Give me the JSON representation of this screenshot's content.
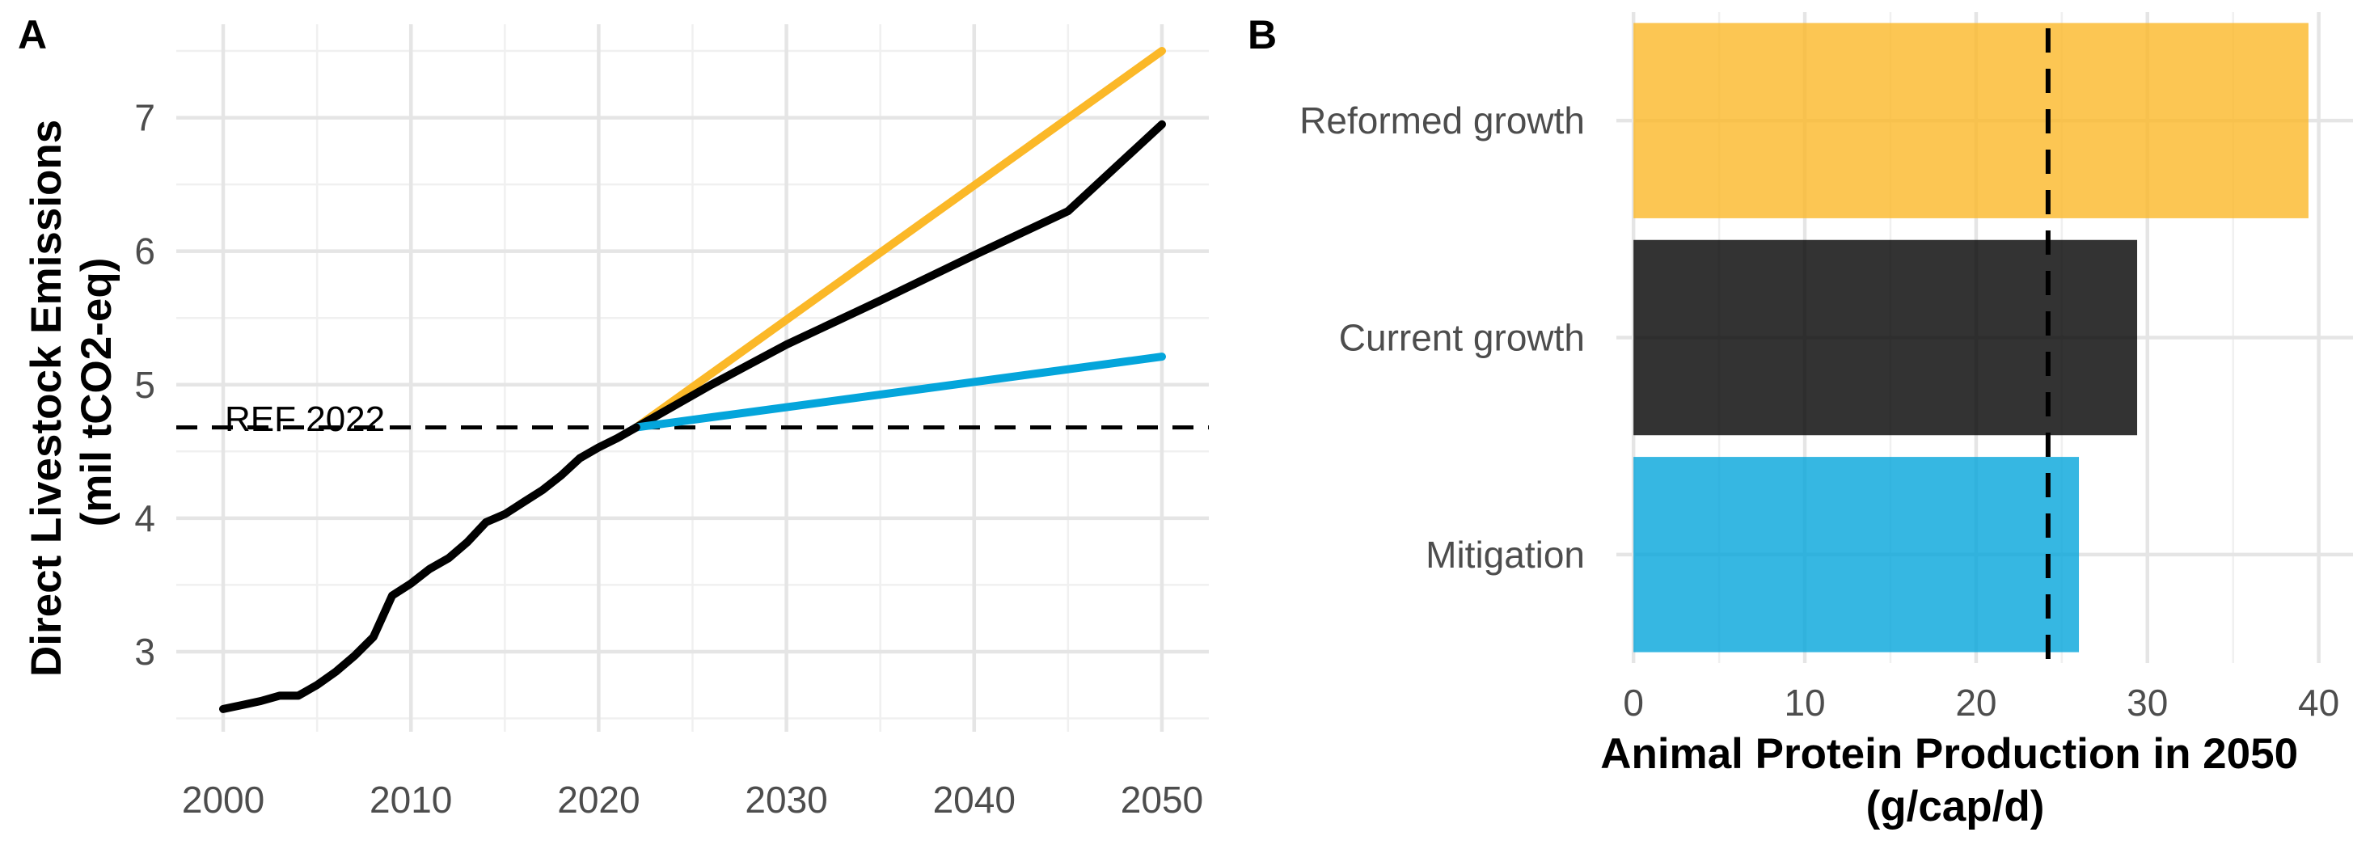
{
  "colors": {
    "reformed": "#FBB828",
    "current": "#000000",
    "mitigation": "#04A5DB",
    "reference": "#000000"
  },
  "chart_data": [
    {
      "panel": "A",
      "type": "line",
      "xlabel": "",
      "ylabel": [
        "Direct Livestock Emissions",
        "(mil tCO2-eq)"
      ],
      "xlim": [
        1997.5,
        2052.5
      ],
      "ylim": [
        2.4,
        7.7
      ],
      "xticks": [
        2000,
        2010,
        2020,
        2030,
        2040,
        2050
      ],
      "yticks": [
        3,
        4,
        5,
        6,
        7
      ],
      "grid": true,
      "reference_line": {
        "label": "REF 2022",
        "y": 4.68
      },
      "series": [
        {
          "color_key": "reformed",
          "x": [
            2022,
            2050
          ],
          "y": [
            4.68,
            7.5
          ]
        },
        {
          "color_key": "current",
          "x": [
            2022,
            2026,
            2030,
            2035,
            2040,
            2045,
            2050
          ],
          "y": [
            4.68,
            5.0,
            5.3,
            5.63,
            5.97,
            6.3,
            6.95
          ]
        },
        {
          "color_key": "mitigation",
          "x": [
            2022,
            2050
          ],
          "y": [
            4.68,
            5.21
          ]
        },
        {
          "color_key": "current",
          "x": [
            2000,
            2001,
            2002,
            2003,
            2004,
            2005,
            2006,
            2007,
            2008,
            2009,
            2010,
            2011,
            2012,
            2013,
            2014,
            2015,
            2016,
            2017,
            2018,
            2019,
            2020,
            2021,
            2022
          ],
          "y": [
            2.57,
            2.6,
            2.63,
            2.67,
            2.67,
            2.75,
            2.85,
            2.97,
            3.11,
            3.42,
            3.51,
            3.62,
            3.7,
            3.82,
            3.97,
            4.03,
            4.12,
            4.21,
            4.32,
            4.45,
            4.53,
            4.6,
            4.68
          ]
        }
      ]
    },
    {
      "panel": "B",
      "type": "bar",
      "orientation": "horizontal",
      "categories": [
        "Reformed growth",
        "Current growth",
        "Mitigation"
      ],
      "values": [
        39.4,
        29.4,
        26.0
      ],
      "color_keys": [
        "reformed",
        "current",
        "mitigation"
      ],
      "xlabel": [
        "Animal Protein Production in 2050",
        "(g/cap/d)"
      ],
      "ylabel": "",
      "xlim": [
        -1,
        42
      ],
      "xticks": [
        0,
        10,
        20,
        30,
        40
      ],
      "grid": true,
      "reference_line": {
        "x": 24.2
      }
    }
  ]
}
